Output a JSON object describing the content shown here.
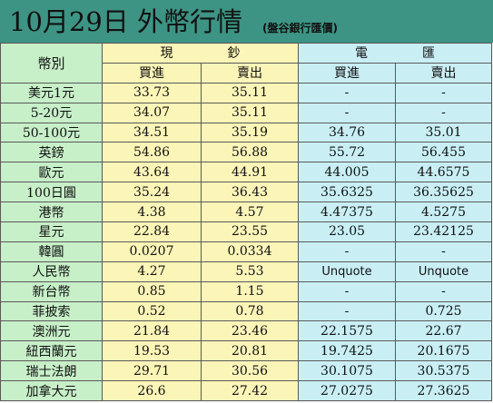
{
  "header": {
    "title": "10月29日 外幣行情",
    "subtitle": "(盤谷銀行匯價)"
  },
  "table": {
    "corner_label": "幣別",
    "groups": [
      "現鈔",
      "電匯"
    ],
    "sub_headers": [
      "買進",
      "賣出",
      "買進",
      "賣出"
    ],
    "rows": [
      {
        "currency": "美元1元",
        "cash_buy": "33.73",
        "cash_sell": "35.11",
        "tt_buy": "-",
        "tt_sell": "-"
      },
      {
        "currency": "5-20元",
        "cash_buy": "34.07",
        "cash_sell": "35.11",
        "tt_buy": "-",
        "tt_sell": "-"
      },
      {
        "currency": "50-100元",
        "cash_buy": "34.51",
        "cash_sell": "35.19",
        "tt_buy": "34.76",
        "tt_sell": "35.01"
      },
      {
        "currency": "英鎊",
        "cash_buy": "54.86",
        "cash_sell": "56.88",
        "tt_buy": "55.72",
        "tt_sell": "56.455"
      },
      {
        "currency": "歐元",
        "cash_buy": "43.64",
        "cash_sell": "44.91",
        "tt_buy": "44.005",
        "tt_sell": "44.6575"
      },
      {
        "currency": "100日圓",
        "cash_buy": "35.24",
        "cash_sell": "36.43",
        "tt_buy": "35.6325",
        "tt_sell": "36.35625"
      },
      {
        "currency": "港幣",
        "cash_buy": "4.38",
        "cash_sell": "4.57",
        "tt_buy": "4.47375",
        "tt_sell": "4.5275"
      },
      {
        "currency": "星元",
        "cash_buy": "22.84",
        "cash_sell": "23.55",
        "tt_buy": "23.05",
        "tt_sell": "23.42125"
      },
      {
        "currency": "韓圓",
        "cash_buy": "0.0207",
        "cash_sell": "0.0334",
        "tt_buy": "-",
        "tt_sell": "-"
      },
      {
        "currency": "人民幣",
        "cash_buy": "4.27",
        "cash_sell": "5.53",
        "tt_buy": "Unquote",
        "tt_sell": "Unquote"
      },
      {
        "currency": "新台幣",
        "cash_buy": "0.85",
        "cash_sell": "1.15",
        "tt_buy": "-",
        "tt_sell": "-"
      },
      {
        "currency": "菲披索",
        "cash_buy": "0.52",
        "cash_sell": "0.78",
        "tt_buy": "-",
        "tt_sell": "0.725"
      },
      {
        "currency": "澳洲元",
        "cash_buy": "21.84",
        "cash_sell": "23.46",
        "tt_buy": "22.1575",
        "tt_sell": "22.67"
      },
      {
        "currency": "紐西蘭元",
        "cash_buy": "19.53",
        "cash_sell": "20.81",
        "tt_buy": "19.7425",
        "tt_sell": "20.1675"
      },
      {
        "currency": "瑞士法朗",
        "cash_buy": "29.71",
        "cash_sell": "30.56",
        "tt_buy": "30.1075",
        "tt_sell": "30.5375"
      },
      {
        "currency": "加拿大元",
        "cash_buy": "26.6",
        "cash_sell": "27.42",
        "tt_buy": "27.0275",
        "tt_sell": "27.3625"
      }
    ]
  }
}
